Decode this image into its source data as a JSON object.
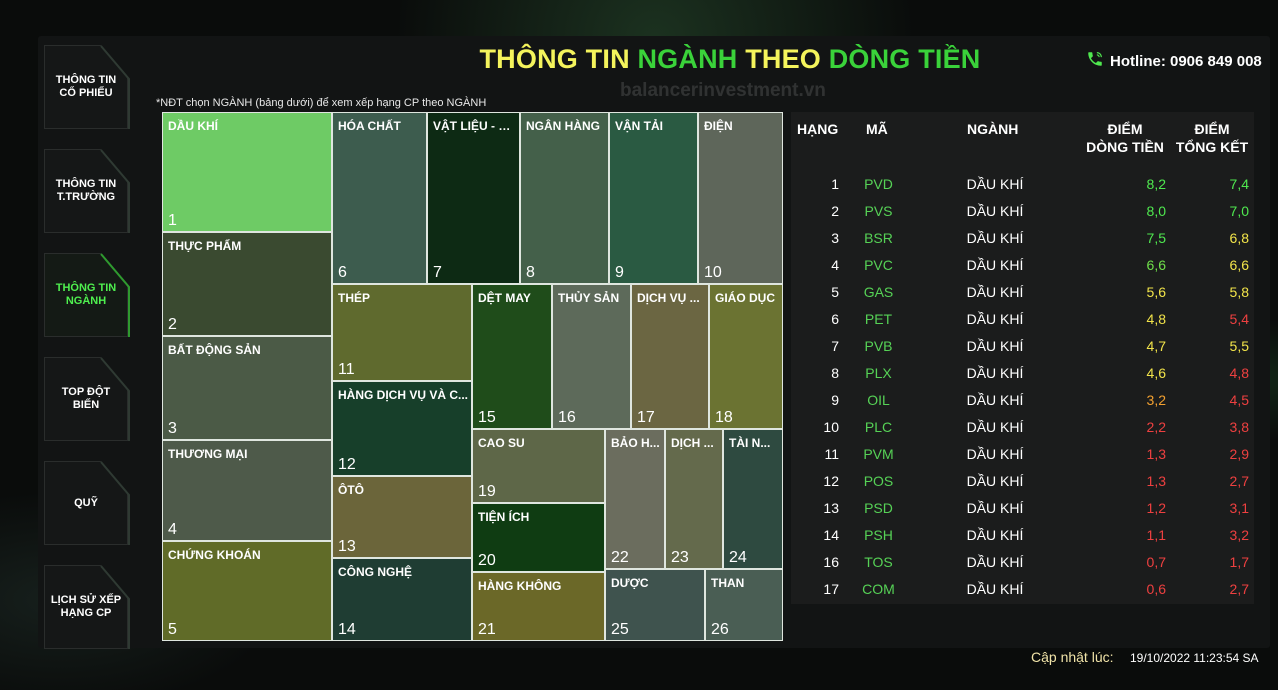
{
  "header": {
    "title_parts": [
      "THÔNG TIN",
      "NGÀNH",
      "THEO",
      "DÒNG TIỀN"
    ],
    "hotline": "Hotline: 0906 849 008",
    "hotline_icon": "phone-icon",
    "watermark": "balancerinvestment.vn"
  },
  "sidebar": {
    "items": [
      {
        "label": "THÔNG TIN CỔ PHIẾU",
        "active": false
      },
      {
        "label": "THÔNG TIN T.TRƯỜNG",
        "active": false
      },
      {
        "label": "THÔNG TIN NGÀNH",
        "active": true
      },
      {
        "label": "TOP ĐỘT BIẾN",
        "active": false
      },
      {
        "label": "QUỸ",
        "active": false
      },
      {
        "label": "LỊCH SỬ XẾP HẠNG CP",
        "active": false
      }
    ]
  },
  "note": "*NĐT chọn NGÀNH (bảng dưới) để xem xếp hạng CP theo NGÀNH",
  "treemap": {
    "cells": [
      {
        "name": "DẦU KHÍ",
        "rank": "1",
        "color": "#6ecb65"
      },
      {
        "name": "THỰC PHẨM",
        "rank": "2",
        "color": "#3a4a30"
      },
      {
        "name": "BẤT ĐỘNG SẢN",
        "rank": "3",
        "color": "#4b5a46"
      },
      {
        "name": "THƯƠNG MẠI",
        "rank": "4",
        "color": "#4e5a4a"
      },
      {
        "name": "CHỨNG KHOÁN",
        "rank": "5",
        "color": "#606b28"
      },
      {
        "name": "HÓA CHẤT",
        "rank": "6",
        "color": "#3d5c4e"
      },
      {
        "name": "VẬT LIỆU - X...",
        "rank": "7",
        "color": "#0d2a14"
      },
      {
        "name": "NGÂN HÀNG",
        "rank": "8",
        "color": "#44604a"
      },
      {
        "name": "VẬN TẢI",
        "rank": "9",
        "color": "#2a5a42"
      },
      {
        "name": "ĐIỆN",
        "rank": "10",
        "color": "#5e665a"
      },
      {
        "name": "THÉP",
        "rank": "11",
        "color": "#5f6a2e"
      },
      {
        "name": "HÀNG DỊCH VỤ VÀ C...",
        "rank": "12",
        "color": "#173f2a"
      },
      {
        "name": "ÔTÔ",
        "rank": "13",
        "color": "#6b653a"
      },
      {
        "name": "CÔNG NGHỆ",
        "rank": "14",
        "color": "#1f3d33"
      },
      {
        "name": "DỆT MAY",
        "rank": "15",
        "color": "#1f4c1a"
      },
      {
        "name": "THỦY SẢN",
        "rank": "16",
        "color": "#5d6a5a"
      },
      {
        "name": "DỊCH VỤ ...",
        "rank": "17",
        "color": "#6b6642"
      },
      {
        "name": "GIÁO DỤC",
        "rank": "18",
        "color": "#6b7332"
      },
      {
        "name": "CAO SU",
        "rank": "19",
        "color": "#5e6748"
      },
      {
        "name": "TIỆN ÍCH",
        "rank": "20",
        "color": "#0f3c12"
      },
      {
        "name": "HÀNG KHÔNG",
        "rank": "21",
        "color": "#6b6828"
      },
      {
        "name": "BẢO H...",
        "rank": "22",
        "color": "#6b6d5e"
      },
      {
        "name": "DỊCH ...",
        "rank": "23",
        "color": "#646a4c"
      },
      {
        "name": "TÀI N...",
        "rank": "24",
        "color": "#2e4a40"
      },
      {
        "name": "DƯỢC",
        "rank": "25",
        "color": "#3f534e"
      },
      {
        "name": "THAN",
        "rank": "26",
        "color": "#4a5e54"
      }
    ]
  },
  "table": {
    "headers": {
      "rank": "HẠNG",
      "code": "MÃ",
      "sector": "NGÀNH",
      "flow_line1": "ĐIỂM",
      "flow_line2": "DÒNG TIỀN",
      "total_line1": "ĐIỂM",
      "total_line2": "TỔNG KẾT"
    },
    "rows": [
      {
        "rank": "1",
        "code": "PVD",
        "sector": "DẦU KHÍ",
        "flow": "8,2",
        "total": "7,4",
        "flow_color": "#4fe84f",
        "total_color": "#4fe84f"
      },
      {
        "rank": "2",
        "code": "PVS",
        "sector": "DẦU KHÍ",
        "flow": "8,0",
        "total": "7,0",
        "flow_color": "#4fe84f",
        "total_color": "#4fe84f"
      },
      {
        "rank": "3",
        "code": "BSR",
        "sector": "DẦU KHÍ",
        "flow": "7,5",
        "total": "6,8",
        "flow_color": "#4fe84f",
        "total_color": "#f2e44a"
      },
      {
        "rank": "4",
        "code": "PVC",
        "sector": "DẦU KHÍ",
        "flow": "6,6",
        "total": "6,6",
        "flow_color": "#6fe04a",
        "total_color": "#f2e44a"
      },
      {
        "rank": "5",
        "code": "GAS",
        "sector": "DẦU KHÍ",
        "flow": "5,6",
        "total": "5,8",
        "flow_color": "#f2e44a",
        "total_color": "#f2e44a"
      },
      {
        "rank": "6",
        "code": "PET",
        "sector": "DẦU KHÍ",
        "flow": "4,8",
        "total": "5,4",
        "flow_color": "#f2e44a",
        "total_color": "#ee4040"
      },
      {
        "rank": "7",
        "code": "PVB",
        "sector": "DẦU KHÍ",
        "flow": "4,7",
        "total": "5,5",
        "flow_color": "#f2e44a",
        "total_color": "#f2e44a"
      },
      {
        "rank": "8",
        "code": "PLX",
        "sector": "DẦU KHÍ",
        "flow": "4,6",
        "total": "4,8",
        "flow_color": "#f2e44a",
        "total_color": "#ee4040"
      },
      {
        "rank": "9",
        "code": "OIL",
        "sector": "DẦU KHÍ",
        "flow": "3,2",
        "total": "4,5",
        "flow_color": "#f2a030",
        "total_color": "#ee4040"
      },
      {
        "rank": "10",
        "code": "PLC",
        "sector": "DẦU KHÍ",
        "flow": "2,2",
        "total": "3,8",
        "flow_color": "#ee4040",
        "total_color": "#ee4040"
      },
      {
        "rank": "11",
        "code": "PVM",
        "sector": "DẦU KHÍ",
        "flow": "1,3",
        "total": "2,9",
        "flow_color": "#ee4040",
        "total_color": "#ee4040"
      },
      {
        "rank": "12",
        "code": "POS",
        "sector": "DẦU KHÍ",
        "flow": "1,3",
        "total": "2,7",
        "flow_color": "#ee4040",
        "total_color": "#ee4040"
      },
      {
        "rank": "13",
        "code": "PSD",
        "sector": "DẦU KHÍ",
        "flow": "1,2",
        "total": "3,1",
        "flow_color": "#ee4040",
        "total_color": "#ee4040"
      },
      {
        "rank": "14",
        "code": "PSH",
        "sector": "DẦU KHÍ",
        "flow": "1,1",
        "total": "3,2",
        "flow_color": "#ee4040",
        "total_color": "#ee4040"
      },
      {
        "rank": "16",
        "code": "TOS",
        "sector": "DẦU KHÍ",
        "flow": "0,7",
        "total": "1,7",
        "flow_color": "#ee4040",
        "total_color": "#ee4040"
      },
      {
        "rank": "17",
        "code": "COM",
        "sector": "DẦU KHÍ",
        "flow": "0,6",
        "total": "2,7",
        "flow_color": "#ee4040",
        "total_color": "#ee4040"
      }
    ]
  },
  "footer": {
    "updated_label": "Cập nhật lúc:",
    "updated_time": "19/10/2022 11:23:54 SA"
  }
}
